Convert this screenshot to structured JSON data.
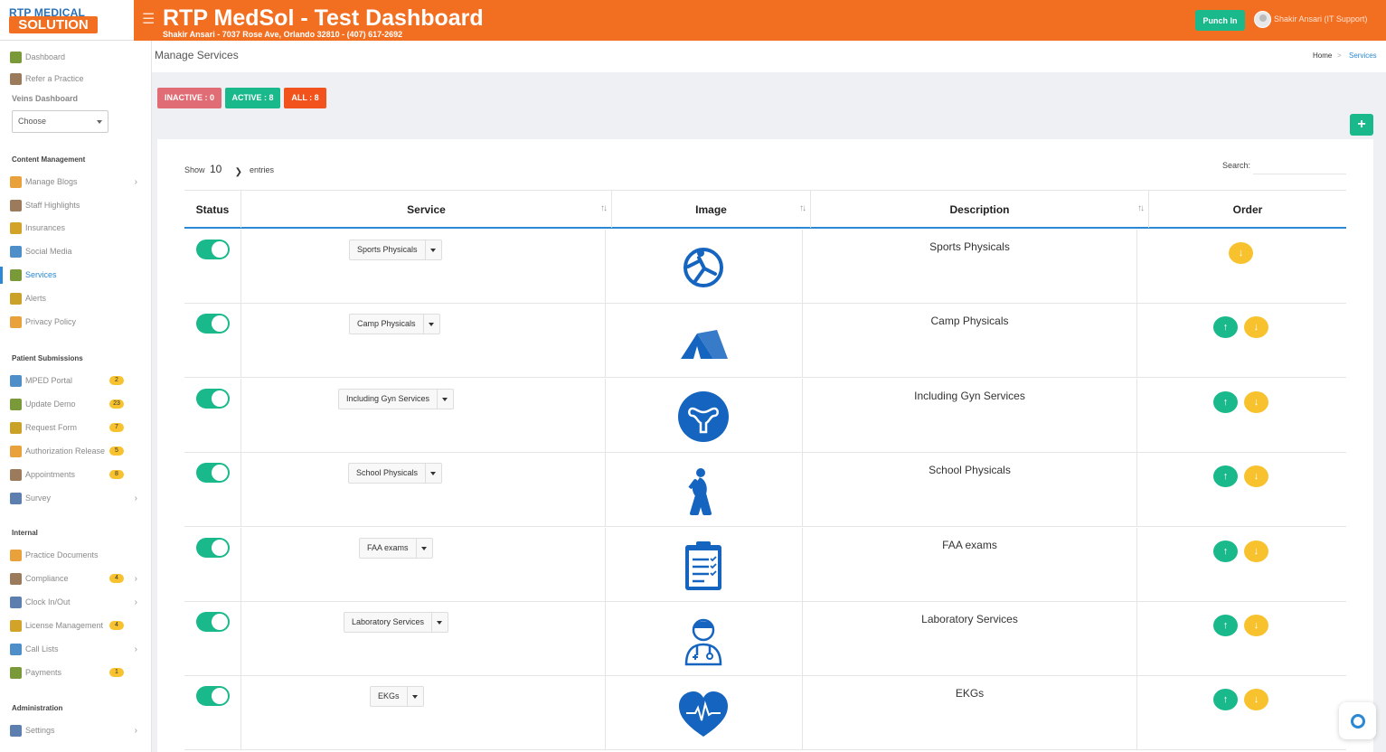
{
  "header": {
    "logo_top": "RTP MEDICAL",
    "logo_bottom": "SOLUTION",
    "title": "RTP MedSol - Test Dashboard",
    "subtitle": "Shakir Ansari - 7037 Rose Ave, Orlando 32810 - (407) 617-2692",
    "punch_label": "Punch In",
    "user_name": "Shakir Ansari (IT Support)"
  },
  "sidebar": {
    "top_items": [
      {
        "label": "Dashboard",
        "icon": "dashboard-icon"
      },
      {
        "label": "Refer a Practice",
        "icon": "refer-icon"
      }
    ],
    "veins_label": "Veins Dashboard",
    "choose_value": "Choose",
    "content_heading": "Content Management",
    "content_items": [
      {
        "label": "Manage Blogs",
        "icon": "blog-icon",
        "chevron": true
      },
      {
        "label": "Staff Highlights",
        "icon": "staff-icon"
      },
      {
        "label": "Insurances",
        "icon": "insurance-icon"
      },
      {
        "label": "Social Media",
        "icon": "social-icon"
      },
      {
        "label": "Services",
        "icon": "services-icon",
        "active": true
      },
      {
        "label": "Alerts",
        "icon": "alert-icon"
      },
      {
        "label": "Privacy Policy",
        "icon": "privacy-icon"
      }
    ],
    "patient_heading": "Patient Submissions",
    "patient_items": [
      {
        "label": "MPED Portal",
        "icon": "portal-icon",
        "badge": "2"
      },
      {
        "label": "Update Demo",
        "icon": "demo-icon",
        "badge": "23"
      },
      {
        "label": "Request Form",
        "icon": "form-icon",
        "badge": "7"
      },
      {
        "label": "Authorization Release",
        "icon": "auth-icon",
        "badge": "5"
      },
      {
        "label": "Appointments",
        "icon": "calendar-icon",
        "badge": "8"
      },
      {
        "label": "Survey",
        "icon": "survey-icon",
        "chevron": true
      }
    ],
    "internal_heading": "Internal",
    "internal_items": [
      {
        "label": "Practice Documents",
        "icon": "documents-icon"
      },
      {
        "label": "Compliance",
        "icon": "compliance-icon",
        "badge": "4",
        "chevron": true
      },
      {
        "label": "Clock In/Out",
        "icon": "clock-icon",
        "chevron": true
      },
      {
        "label": "License Management",
        "icon": "license-icon",
        "badge": "4"
      },
      {
        "label": "Call Lists",
        "icon": "call-icon",
        "chevron": true
      },
      {
        "label": "Payments",
        "icon": "payments-icon",
        "badge": "1"
      }
    ],
    "admin_heading": "Administration",
    "admin_items": [
      {
        "label": "Settings",
        "icon": "settings-icon",
        "chevron": true
      }
    ]
  },
  "page": {
    "title": "Manage Services",
    "breadcrumb_home": "Home",
    "breadcrumb_sep": ">",
    "breadcrumb_current": "Services",
    "inactive_label": "INACTIVE : 0",
    "active_label": "ACTIVE : 8",
    "all_label": "ALL : 8",
    "add_label": "+"
  },
  "table": {
    "show_label": "Show",
    "show_value": "10",
    "entries_label": "entries",
    "search_label": "Search:",
    "columns": [
      "Status",
      "Service",
      "Image",
      "Description",
      "Order"
    ],
    "rows": [
      {
        "service": "Sports Physicals",
        "description": "Sports Physicals",
        "image": "sports-icon",
        "up": false,
        "down": true
      },
      {
        "service": "Camp Physicals",
        "description": "Camp Physicals",
        "image": "tent-icon",
        "up": true,
        "down": true
      },
      {
        "service": "Including Gyn Services",
        "description": "Including Gyn Services",
        "image": "uterus-icon",
        "up": true,
        "down": true
      },
      {
        "service": "School Physicals",
        "description": "School Physicals",
        "image": "stretch-icon",
        "up": true,
        "down": true
      },
      {
        "service": "FAA exams",
        "description": "FAA exams",
        "image": "clipboard-icon",
        "up": true,
        "down": true
      },
      {
        "service": "Laboratory Services",
        "description": "Laboratory Services",
        "image": "doctor-icon",
        "up": true,
        "down": true
      },
      {
        "service": "EKGs",
        "description": "EKGs",
        "image": "heart-icon",
        "up": true,
        "down": true
      }
    ]
  },
  "colors": {
    "brand": "#f26f22",
    "accent": "#19b98b",
    "link": "#2a88d4",
    "warning": "#f7c22e",
    "danger": "#e06c75",
    "icon_blue": "#1565c0"
  }
}
